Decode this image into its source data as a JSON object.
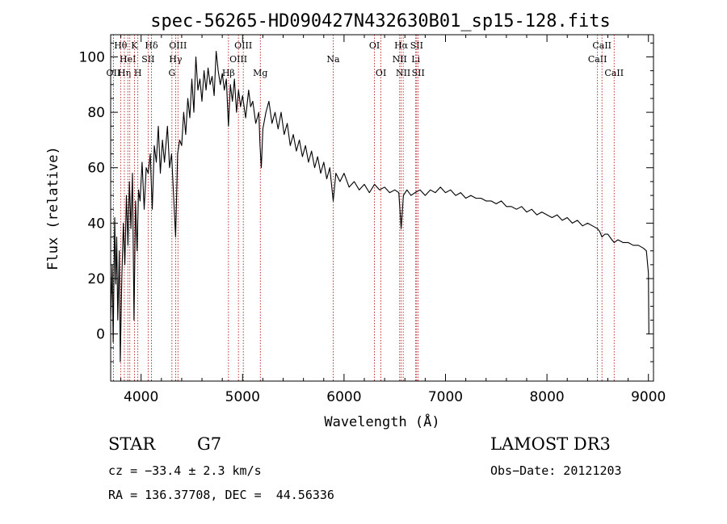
{
  "chart_data": {
    "type": "line",
    "title": "spec-56265-HD090427N432630B01_sp15-128.fits",
    "xlabel": "Wavelength (Å)",
    "ylabel": "Flux (relative)",
    "xlim": [
      3700,
      9050
    ],
    "ylim": [
      -17,
      108
    ],
    "xticks": [
      4000,
      5000,
      6000,
      7000,
      8000,
      9000
    ],
    "yticks": [
      0,
      20,
      40,
      60,
      80,
      100
    ],
    "series": [
      {
        "name": "flux",
        "color": "#000000",
        "points": [
          [
            3700,
            5
          ],
          [
            3715,
            25
          ],
          [
            3725,
            -3
          ],
          [
            3740,
            42
          ],
          [
            3750,
            18
          ],
          [
            3760,
            35
          ],
          [
            3770,
            5
          ],
          [
            3785,
            30
          ],
          [
            3795,
            -10
          ],
          [
            3810,
            20
          ],
          [
            3825,
            40
          ],
          [
            3840,
            25
          ],
          [
            3855,
            50
          ],
          [
            3870,
            32
          ],
          [
            3885,
            55
          ],
          [
            3900,
            38
          ],
          [
            3915,
            58
          ],
          [
            3930,
            5
          ],
          [
            3945,
            48
          ],
          [
            3960,
            30
          ],
          [
            3975,
            52
          ],
          [
            3990,
            48
          ],
          [
            4010,
            62
          ],
          [
            4030,
            45
          ],
          [
            4050,
            60
          ],
          [
            4070,
            58
          ],
          [
            4090,
            65
          ],
          [
            4110,
            45
          ],
          [
            4130,
            68
          ],
          [
            4150,
            62
          ],
          [
            4170,
            75
          ],
          [
            4190,
            58
          ],
          [
            4210,
            70
          ],
          [
            4230,
            62
          ],
          [
            4260,
            75
          ],
          [
            4280,
            60
          ],
          [
            4300,
            65
          ],
          [
            4320,
            50
          ],
          [
            4340,
            35
          ],
          [
            4360,
            65
          ],
          [
            4380,
            70
          ],
          [
            4400,
            68
          ],
          [
            4420,
            80
          ],
          [
            4440,
            72
          ],
          [
            4460,
            85
          ],
          [
            4480,
            78
          ],
          [
            4500,
            92
          ],
          [
            4520,
            80
          ],
          [
            4540,
            100
          ],
          [
            4560,
            88
          ],
          [
            4580,
            92
          ],
          [
            4600,
            84
          ],
          [
            4620,
            95
          ],
          [
            4640,
            88
          ],
          [
            4660,
            96
          ],
          [
            4680,
            90
          ],
          [
            4700,
            93
          ],
          [
            4720,
            86
          ],
          [
            4740,
            102
          ],
          [
            4760,
            95
          ],
          [
            4780,
            90
          ],
          [
            4800,
            94
          ],
          [
            4820,
            88
          ],
          [
            4840,
            92
          ],
          [
            4861,
            75
          ],
          [
            4880,
            90
          ],
          [
            4900,
            84
          ],
          [
            4920,
            92
          ],
          [
            4940,
            80
          ],
          [
            4960,
            88
          ],
          [
            4980,
            82
          ],
          [
            5000,
            86
          ],
          [
            5030,
            78
          ],
          [
            5060,
            88
          ],
          [
            5080,
            82
          ],
          [
            5100,
            84
          ],
          [
            5130,
            76
          ],
          [
            5160,
            80
          ],
          [
            5172,
            68
          ],
          [
            5185,
            60
          ],
          [
            5200,
            74
          ],
          [
            5230,
            80
          ],
          [
            5260,
            84
          ],
          [
            5290,
            76
          ],
          [
            5320,
            80
          ],
          [
            5350,
            74
          ],
          [
            5380,
            80
          ],
          [
            5410,
            72
          ],
          [
            5440,
            76
          ],
          [
            5470,
            68
          ],
          [
            5500,
            72
          ],
          [
            5530,
            66
          ],
          [
            5560,
            70
          ],
          [
            5590,
            64
          ],
          [
            5620,
            68
          ],
          [
            5650,
            62
          ],
          [
            5680,
            66
          ],
          [
            5710,
            60
          ],
          [
            5740,
            64
          ],
          [
            5770,
            58
          ],
          [
            5800,
            62
          ],
          [
            5830,
            56
          ],
          [
            5860,
            60
          ],
          [
            5893,
            48
          ],
          [
            5920,
            58
          ],
          [
            5960,
            55
          ],
          [
            6000,
            58
          ],
          [
            6050,
            53
          ],
          [
            6100,
            55
          ],
          [
            6150,
            52
          ],
          [
            6200,
            54
          ],
          [
            6250,
            51
          ],
          [
            6300,
            54
          ],
          [
            6350,
            52
          ],
          [
            6400,
            53
          ],
          [
            6450,
            51
          ],
          [
            6500,
            52
          ],
          [
            6540,
            51
          ],
          [
            6563,
            38
          ],
          [
            6585,
            50
          ],
          [
            6620,
            52
          ],
          [
            6660,
            50
          ],
          [
            6700,
            51
          ],
          [
            6750,
            52
          ],
          [
            6800,
            50
          ],
          [
            6850,
            52
          ],
          [
            6900,
            51
          ],
          [
            6950,
            53
          ],
          [
            7000,
            51
          ],
          [
            7050,
            52
          ],
          [
            7100,
            50
          ],
          [
            7150,
            51
          ],
          [
            7200,
            49
          ],
          [
            7250,
            50
          ],
          [
            7300,
            49
          ],
          [
            7350,
            49
          ],
          [
            7400,
            48
          ],
          [
            7450,
            48
          ],
          [
            7500,
            47
          ],
          [
            7550,
            48
          ],
          [
            7600,
            46
          ],
          [
            7650,
            46
          ],
          [
            7700,
            45
          ],
          [
            7750,
            46
          ],
          [
            7800,
            44
          ],
          [
            7850,
            45
          ],
          [
            7900,
            43
          ],
          [
            7950,
            44
          ],
          [
            8000,
            43
          ],
          [
            8050,
            42
          ],
          [
            8100,
            43
          ],
          [
            8150,
            41
          ],
          [
            8200,
            42
          ],
          [
            8250,
            40
          ],
          [
            8300,
            41
          ],
          [
            8350,
            39
          ],
          [
            8400,
            40
          ],
          [
            8450,
            39
          ],
          [
            8498,
            38
          ],
          [
            8520,
            37
          ],
          [
            8542,
            35
          ],
          [
            8570,
            36
          ],
          [
            8600,
            36
          ],
          [
            8640,
            34
          ],
          [
            8662,
            33
          ],
          [
            8700,
            34
          ],
          [
            8750,
            33
          ],
          [
            8800,
            33
          ],
          [
            8850,
            32
          ],
          [
            8900,
            32
          ],
          [
            8950,
            31
          ],
          [
            8980,
            30
          ],
          [
            9000,
            22
          ],
          [
            9005,
            0
          ]
        ]
      }
    ],
    "line_markers": [
      {
        "wave": 3727,
        "label": "OII",
        "row": 2
      },
      {
        "wave": 3798,
        "label": "Hθ",
        "row": 0
      },
      {
        "wave": 3835,
        "label": "Hη",
        "row": 2
      },
      {
        "wave": 3869,
        "label": "HeI",
        "row": 1
      },
      {
        "wave": 3889,
        "label": "",
        "row": -1
      },
      {
        "wave": 3934,
        "label": "K",
        "row": 0
      },
      {
        "wave": 3968,
        "label": "H",
        "row": 2
      },
      {
        "wave": 4069,
        "label": "SII",
        "row": 1
      },
      {
        "wave": 4102,
        "label": "Hδ",
        "row": 0
      },
      {
        "wave": 4304,
        "label": "G",
        "row": 2
      },
      {
        "wave": 4340,
        "label": "Hγ",
        "row": 1
      },
      {
        "wave": 4363,
        "label": "OIII",
        "row": 0
      },
      {
        "wave": 4861,
        "label": "Hβ",
        "row": 2
      },
      {
        "wave": 4959,
        "label": "OIII",
        "row": 1
      },
      {
        "wave": 5007,
        "label": "OIII",
        "row": 0
      },
      {
        "wave": 5175,
        "label": "Mg",
        "row": 2
      },
      {
        "wave": 5893,
        "label": "Na",
        "row": 1
      },
      {
        "wave": 6300,
        "label": "OI",
        "row": 0
      },
      {
        "wave": 6364,
        "label": "OI",
        "row": 2
      },
      {
        "wave": 6548,
        "label": "NII",
        "row": 1
      },
      {
        "wave": 6563,
        "label": "Hα",
        "row": 0
      },
      {
        "wave": 6583,
        "label": "NII",
        "row": 2
      },
      {
        "wave": 6707,
        "label": "Li",
        "row": 1
      },
      {
        "wave": 6716,
        "label": "SII",
        "row": 0
      },
      {
        "wave": 6731,
        "label": "SII",
        "row": 2
      },
      {
        "wave": 8498,
        "label": "CaII",
        "row": 1
      },
      {
        "wave": 8542,
        "label": "CaII",
        "row": 0
      },
      {
        "wave": 8662,
        "label": "CaII",
        "row": 2
      }
    ]
  },
  "info": {
    "object_class": "STAR",
    "subclass": "G7",
    "survey": "LAMOST DR3",
    "cz": "cz = −33.4 ± 2.3 km/s",
    "obs_date": "Obs−Date: 20121203",
    "coords": "RA = 136.37708, DEC =  44.56336"
  },
  "colors": {
    "line_marker": "#b00000",
    "spectrum": "#000000"
  }
}
